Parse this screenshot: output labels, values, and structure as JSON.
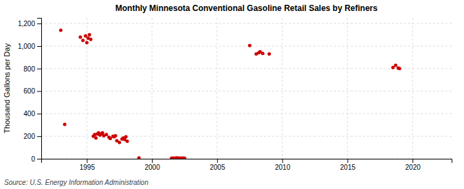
{
  "chart_data": {
    "type": "scatter",
    "title": "Monthly Minnesota Conventional Gasoline Retail Sales by Refiners",
    "ylabel": "Thousand Gallons per Day",
    "annotations": [
      "Source: U.S. Energy Information Administration"
    ],
    "color": "#cc0000",
    "grid": true,
    "xlim": [
      1991.5,
      2023
    ],
    "ylim": [
      0,
      1250
    ],
    "xticks": [
      1995,
      2000,
      2005,
      2010,
      2015,
      2020
    ],
    "yticks": [
      0,
      200,
      400,
      600,
      800,
      {
        "value": 1000,
        "label": "1,000"
      },
      {
        "value": 1200,
        "label": "1,200"
      }
    ],
    "x": [
      1993.0,
      1993.3,
      1994.5,
      1994.7,
      1994.9,
      1995.0,
      1995.1,
      1995.2,
      1995.3,
      1995.5,
      1995.6,
      1995.7,
      1995.8,
      1995.9,
      1996.0,
      1996.1,
      1996.2,
      1996.3,
      1996.5,
      1996.7,
      1996.8,
      1997.0,
      1997.1,
      1997.2,
      1997.3,
      1997.5,
      1997.7,
      1997.8,
      1997.9,
      1998.0,
      1998.1,
      1999.0,
      2001.5,
      2001.6,
      2001.7,
      2001.8,
      2001.9,
      2002.0,
      2002.1,
      2002.2,
      2002.3,
      2002.4,
      2002.5,
      2007.5,
      2008.0,
      2008.2,
      2008.3,
      2008.5,
      2009.0,
      2018.5,
      2018.7,
      2018.9,
      2019.0
    ],
    "values": [
      1140,
      305,
      1080,
      1050,
      1090,
      1030,
      1070,
      1100,
      1060,
      200,
      215,
      185,
      220,
      230,
      210,
      220,
      230,
      205,
      215,
      190,
      180,
      200,
      195,
      205,
      160,
      145,
      175,
      185,
      170,
      195,
      155,
      8,
      5,
      6,
      5,
      6,
      7,
      6,
      5,
      6,
      5,
      6,
      5,
      1005,
      930,
      940,
      950,
      935,
      930,
      810,
      830,
      805,
      800
    ]
  }
}
